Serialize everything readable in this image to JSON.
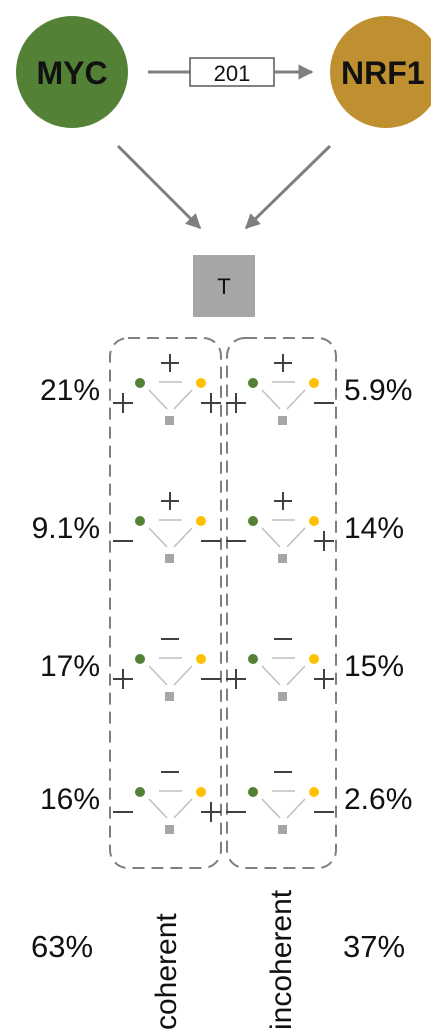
{
  "nodes": {
    "regulator_a": {
      "label": "MYC",
      "color": "#538135"
    },
    "regulator_b": {
      "label": "NRF1",
      "color": "#bf9030"
    },
    "target": {
      "label": "T",
      "color": "#a6a6a6"
    },
    "link_count": "201"
  },
  "colors": {
    "arrow": "#7f7f7f",
    "dashed_box": "#7f7f7f",
    "icon_green": "#538135",
    "icon_yellow": "#ffc000",
    "icon_gray": "#a6a6a6",
    "sign_dark": "#404040",
    "sign_light": "#7f7f7f"
  },
  "motifs": [
    {
      "row": 1,
      "coherent": {
        "percent": "21%",
        "top": "+",
        "left": "+",
        "right": "+"
      },
      "incoherent": {
        "percent": "5.9%",
        "top": "+",
        "left": "+",
        "right": "−"
      }
    },
    {
      "row": 2,
      "coherent": {
        "percent": "9.1%",
        "top": "+",
        "left": "−",
        "right": "−"
      },
      "incoherent": {
        "percent": "14%",
        "top": "+",
        "left": "−",
        "right": "+"
      }
    },
    {
      "row": 3,
      "coherent": {
        "percent": "17%",
        "top": "−",
        "left": "+",
        "right": "−"
      },
      "incoherent": {
        "percent": "15%",
        "top": "−",
        "left": "+",
        "right": "+"
      }
    },
    {
      "row": 4,
      "coherent": {
        "percent": "16%",
        "top": "−",
        "left": "−",
        "right": "+"
      },
      "incoherent": {
        "percent": "2.6%",
        "top": "−",
        "left": "−",
        "right": "−"
      }
    }
  ],
  "groups": {
    "coherent": {
      "label": "coherent",
      "total": "63%"
    },
    "incoherent": {
      "label": "incoherent",
      "total": "37%"
    }
  }
}
